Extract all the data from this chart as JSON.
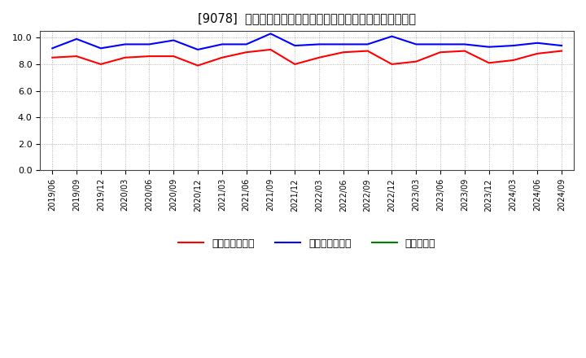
{
  "title": "[９０７８]  売上債権回転率、買入債務回転率、在庫回転率の推移",
  "title_prefix": "[9078]",
  "title_suffix": "売上債権回転率、買入債務回転率、在庫回転率の推移",
  "x_labels": [
    "2019/06",
    "2019/09",
    "2019/12",
    "2020/03",
    "2020/06",
    "2020/09",
    "2020/12",
    "2021/03",
    "2021/06",
    "2021/09",
    "2021/12",
    "2022/03",
    "2022/06",
    "2022/09",
    "2022/12",
    "2023/03",
    "2023/06",
    "2023/09",
    "2023/12",
    "2024/03",
    "2024/06",
    "2024/09"
  ],
  "uriage": [
    8.5,
    8.6,
    8.0,
    8.5,
    8.6,
    8.6,
    7.9,
    8.5,
    8.9,
    9.1,
    8.0,
    8.5,
    8.9,
    9.0,
    8.0,
    8.2,
    8.9,
    9.0,
    8.1,
    8.3,
    8.8,
    9.0
  ],
  "kaiire": [
    9.2,
    9.9,
    9.2,
    9.5,
    9.5,
    9.8,
    9.1,
    9.5,
    9.5,
    10.3,
    9.4,
    9.5,
    9.5,
    9.5,
    10.1,
    9.5,
    9.5,
    9.5,
    9.3,
    9.4,
    9.6,
    9.4
  ],
  "color_uriage": "#ff0000",
  "color_kaiire": "#0000ff",
  "color_zaiko": "#008000",
  "ylim": [
    0.0,
    10.5
  ],
  "yticks": [
    0.0,
    2.0,
    4.0,
    6.0,
    8.0,
    10.0
  ],
  "background_color": "#ffffff",
  "grid_color": "#999999",
  "legend_uriage": "売上債権回転率",
  "legend_kaiire": "買入債務回転率",
  "legend_zaiko": "在庫回転率"
}
